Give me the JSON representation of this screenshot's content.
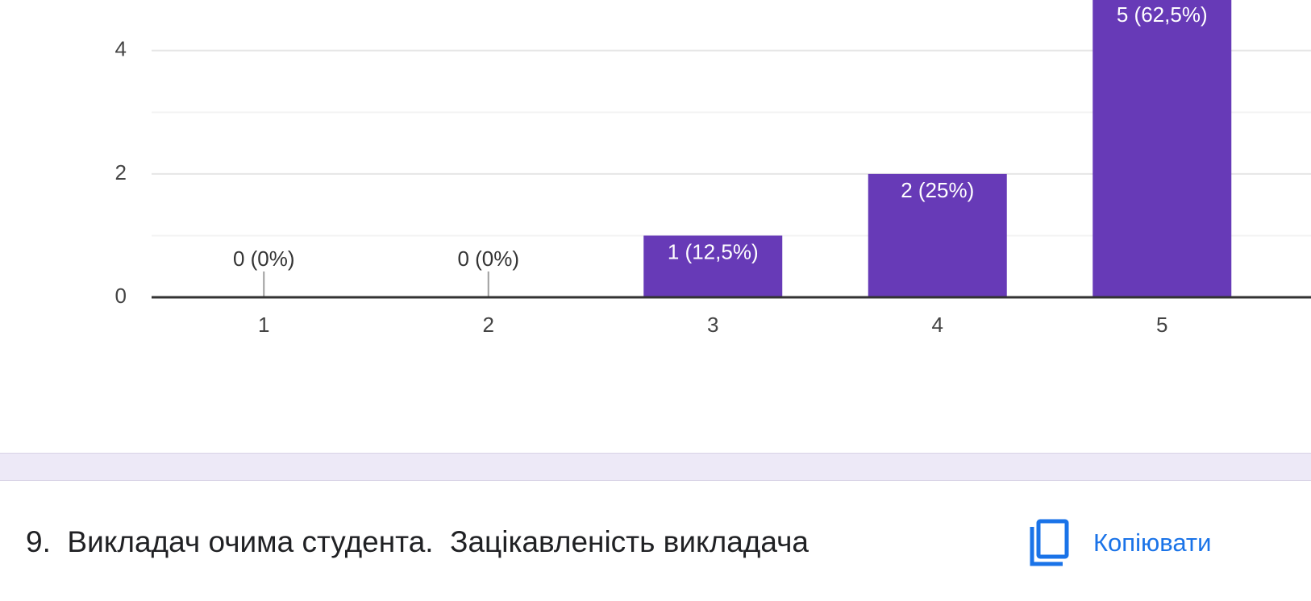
{
  "chart_data": {
    "type": "bar",
    "categories": [
      "1",
      "2",
      "3",
      "4",
      "5"
    ],
    "values": [
      0,
      0,
      1,
      2,
      5
    ],
    "value_labels": [
      "0 (0%)",
      "0 (0%)",
      "1 (12,5%)",
      "2 (25%)",
      "5 (62,5%)"
    ],
    "color": "#673ab7",
    "ylim": [
      0,
      4.82
    ],
    "yticks": [
      0,
      2,
      4
    ],
    "minor_yticks": [
      1,
      3
    ],
    "grid": true
  },
  "question": {
    "text": "9.  Викладач очима студента.  Зацікавленість викладача"
  },
  "copy_button": {
    "label": "Копіювати"
  }
}
